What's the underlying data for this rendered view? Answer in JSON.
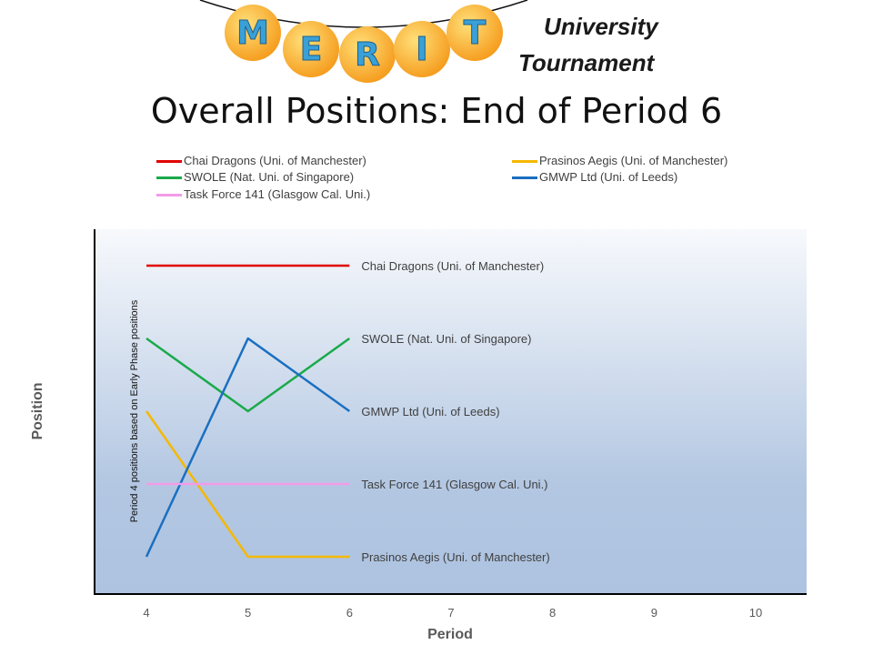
{
  "logo": {
    "letters": [
      "M",
      "E",
      "R",
      "I",
      "T"
    ],
    "tagline_line1": "University",
    "tagline_line2": "Tournament",
    "colors": {
      "ball": "#f59a1a",
      "ball_highlight": "#ffe07a",
      "letter": "#3aa0d8"
    }
  },
  "title": "Overall Positions: End of Period 6",
  "chart_data": {
    "type": "line",
    "xlabel": "Period",
    "ylabel": "Position",
    "x_ticks": [
      4,
      5,
      6,
      7,
      8,
      9,
      10
    ],
    "xlim": [
      4,
      10
    ],
    "ylim": [
      0.5,
      5.5
    ],
    "y_inverted": true,
    "y_tick_labels_shown": false,
    "legend_position": "top",
    "annotation": "Period 4 positions based on Early Phase positions",
    "x": [
      4,
      5,
      6
    ],
    "series": [
      {
        "name": "Chai Dragons (Uni. of Manchester)",
        "color": "#e00000",
        "values": [
          1,
          1,
          1
        ]
      },
      {
        "name": "Prasinos Aegis (Uni. of Manchester)",
        "color": "#f5b800",
        "values": [
          3,
          5,
          5
        ]
      },
      {
        "name": "SWOLE (Nat. Uni. of Singapore)",
        "color": "#1aaa4a",
        "values": [
          2,
          3,
          2
        ]
      },
      {
        "name": "GMWP Ltd (Uni. of Leeds)",
        "color": "#1a6fc0",
        "values": [
          5,
          2,
          3
        ]
      },
      {
        "name": "Task Force 141 (Glasgow Cal. Uni.)",
        "color": "#f39be8",
        "values": [
          4,
          4,
          4
        ]
      }
    ]
  }
}
